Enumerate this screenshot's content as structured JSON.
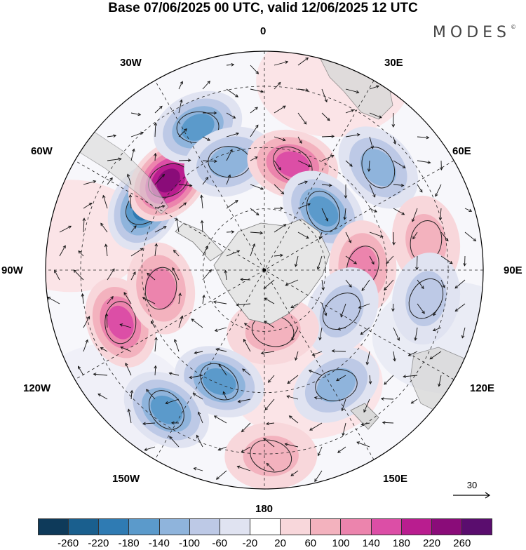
{
  "title": "Base 07/06/2025 00 UTC, valid 12/06/2025 12 UTC",
  "brand": "MODES",
  "brand_mark": "©",
  "longitude_labels": {
    "top": "0",
    "lon30e": "30E",
    "lon60e": "60E",
    "lon90e": "90E",
    "lon120e": "120E",
    "lon150e": "150E",
    "bottom": "180",
    "lon150w": "150W",
    "lon120w": "120W",
    "lon90w": "90W",
    "lon60w": "60W",
    "lon30w": "30W"
  },
  "reference_vector": "30",
  "colorbar": {
    "ticks": [
      "-260",
      "-220",
      "-180",
      "-140",
      "-100",
      "-60",
      "-20",
      "20",
      "60",
      "100",
      "140",
      "180",
      "220",
      "260"
    ],
    "colors": [
      "#0e3a5a",
      "#1a5f8e",
      "#2f7bb3",
      "#5b9acb",
      "#8fb4dc",
      "#bdc9e6",
      "#e0e3f1",
      "#ffffff",
      "#f8d7db",
      "#f3b2be",
      "#ec84ad",
      "#dc4ea6",
      "#b91d8f",
      "#8a0c79",
      "#5a0d6e"
    ]
  },
  "anomaly_centers": [
    {
      "sign": "neg",
      "level": 4,
      "lon": -62,
      "colat": 0.62
    },
    {
      "sign": "pos",
      "level": 5,
      "lon": -47,
      "colat": 0.6
    },
    {
      "sign": "neg",
      "level": 3,
      "lon": -25,
      "colat": 0.72
    },
    {
      "sign": "neg",
      "level": 2,
      "lon": -18,
      "colat": 0.52
    },
    {
      "sign": "pos",
      "level": 3,
      "lon": 15,
      "colat": 0.5
    },
    {
      "sign": "neg",
      "level": 3,
      "lon": 45,
      "colat": 0.38
    },
    {
      "sign": "neg",
      "level": 2,
      "lon": 48,
      "colat": 0.7
    },
    {
      "sign": "pos",
      "level": 1,
      "lon": 80,
      "colat": 0.75
    },
    {
      "sign": "pos",
      "level": 2,
      "lon": 88,
      "colat": 0.45
    },
    {
      "sign": "neg",
      "level": 1,
      "lon": 100,
      "colat": 0.75
    },
    {
      "sign": "neg",
      "level": 1,
      "lon": 118,
      "colat": 0.4
    },
    {
      "sign": "neg",
      "level": 2,
      "lon": 148,
      "colat": 0.62
    },
    {
      "sign": "pos",
      "level": 1,
      "lon": 172,
      "colat": 0.28
    },
    {
      "sign": "pos",
      "level": 1,
      "lon": 178,
      "colat": 0.85
    },
    {
      "sign": "neg",
      "level": 3,
      "lon": -158,
      "colat": 0.55
    },
    {
      "sign": "neg",
      "level": 3,
      "lon": -145,
      "colat": 0.78
    },
    {
      "sign": "pos",
      "level": 3,
      "lon": -110,
      "colat": 0.7
    },
    {
      "sign": "pos",
      "level": 2,
      "lon": -100,
      "colat": 0.48
    }
  ]
}
